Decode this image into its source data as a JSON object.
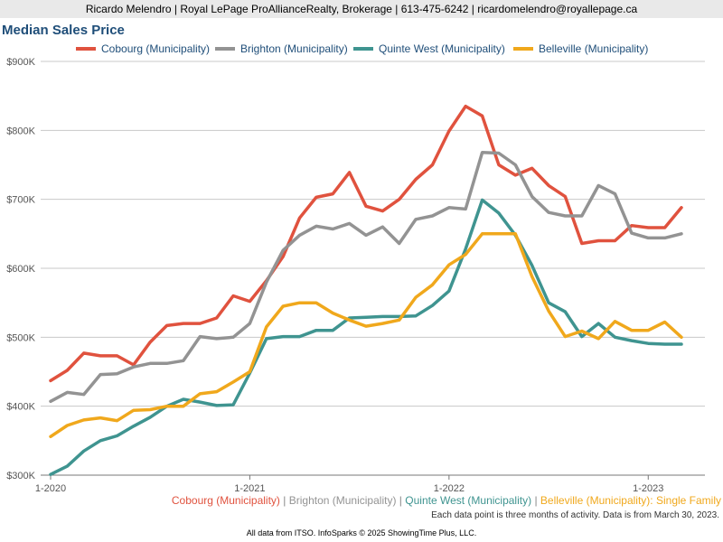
{
  "header": {
    "banner": "Ricardo Melendro | Royal LePage ProAllianceRealty, Brokerage | 613-475-6242 | ricardomelendro@royallepage.ca"
  },
  "colors": {
    "cobourg": "#e0523e",
    "brighton": "#939393",
    "quinte_west": "#3f9490",
    "belleville": "#f0a81c",
    "title": "#1f4e79",
    "grid": "#c8c8c8"
  },
  "footer": {
    "separator": "|",
    "suffix": ":",
    "property_type": "Single Family",
    "note": "Each data point is three months of activity. Data is from March 30, 2023.",
    "credit": "All data from ITSO. InfoSparks © 2025 ShowingTime Plus, LLC."
  },
  "chart_data": {
    "type": "line",
    "title": "Median Sales Price",
    "xlabel": "",
    "ylabel": "",
    "grid": true,
    "legend_position": "top",
    "ylim": [
      300000,
      900000
    ],
    "y_ticks": [
      {
        "value": 300000,
        "label": "$300K"
      },
      {
        "value": 400000,
        "label": "$400K"
      },
      {
        "value": 500000,
        "label": "$500K"
      },
      {
        "value": 600000,
        "label": "$600K"
      },
      {
        "value": 700000,
        "label": "$700K"
      },
      {
        "value": 800000,
        "label": "$800K"
      },
      {
        "value": 900000,
        "label": "$900K"
      }
    ],
    "x_ticks": [
      {
        "value": "2020-01",
        "label": "1-2020"
      },
      {
        "value": "2021-01",
        "label": "1-2021"
      },
      {
        "value": "2022-01",
        "label": "1-2022"
      },
      {
        "value": "2023-01",
        "label": "1-2023"
      }
    ],
    "x": [
      "2020-01",
      "2020-02",
      "2020-03",
      "2020-04",
      "2020-05",
      "2020-06",
      "2020-07",
      "2020-08",
      "2020-09",
      "2020-10",
      "2020-11",
      "2020-12",
      "2021-01",
      "2021-02",
      "2021-03",
      "2021-04",
      "2021-05",
      "2021-06",
      "2021-07",
      "2021-08",
      "2021-09",
      "2021-10",
      "2021-11",
      "2021-12",
      "2022-01",
      "2022-02",
      "2022-03",
      "2022-04",
      "2022-05",
      "2022-06",
      "2022-07",
      "2022-08",
      "2022-09",
      "2022-10",
      "2022-11",
      "2022-12",
      "2023-01",
      "2023-02",
      "2023-03"
    ],
    "series": [
      {
        "name": "Cobourg (Municipality)",
        "color_key": "cobourg",
        "values": [
          437000,
          452000,
          477000,
          473000,
          473000,
          460000,
          493000,
          517000,
          520000,
          520000,
          528000,
          560000,
          552000,
          582000,
          617000,
          673000,
          703000,
          708000,
          739000,
          690000,
          683000,
          700000,
          729000,
          750000,
          799000,
          835000,
          821000,
          750000,
          735000,
          745000,
          720000,
          704000,
          636000,
          640000,
          640000,
          662000,
          659000,
          659000,
          688000
        ]
      },
      {
        "name": "Brighton (Municipality)",
        "color_key": "brighton",
        "values": [
          407000,
          420000,
          417000,
          446000,
          447000,
          457000,
          462000,
          462000,
          466000,
          501000,
          498000,
          500000,
          520000,
          580000,
          626000,
          648000,
          661000,
          657000,
          665000,
          648000,
          660000,
          636000,
          671000,
          676000,
          688000,
          686000,
          768000,
          767000,
          750000,
          704000,
          681000,
          676000,
          676000,
          720000,
          708000,
          651000,
          644000,
          644000,
          650000
        ]
      },
      {
        "name": "Quinte West (Municipality)",
        "color_key": "quinte_west",
        "values": [
          301000,
          313000,
          335000,
          350000,
          357000,
          371000,
          384000,
          400000,
          410000,
          406000,
          401000,
          402000,
          448000,
          498000,
          501000,
          501000,
          510000,
          510000,
          528000,
          529000,
          530000,
          530000,
          531000,
          546000,
          567000,
          628000,
          699000,
          680000,
          648000,
          604000,
          550000,
          537000,
          501000,
          520000,
          500000,
          495000,
          491000,
          490000,
          490000
        ]
      },
      {
        "name": "Belleville (Municipality)",
        "color_key": "belleville",
        "values": [
          356000,
          372000,
          380000,
          383000,
          379000,
          394000,
          395000,
          400000,
          400000,
          418000,
          421000,
          435000,
          450000,
          515000,
          545000,
          550000,
          550000,
          535000,
          525000,
          516000,
          520000,
          525000,
          558000,
          576000,
          605000,
          620000,
          650000,
          650000,
          650000,
          588000,
          538000,
          501000,
          509000,
          498000,
          523000,
          510000,
          510000,
          522000,
          500000
        ]
      }
    ]
  }
}
